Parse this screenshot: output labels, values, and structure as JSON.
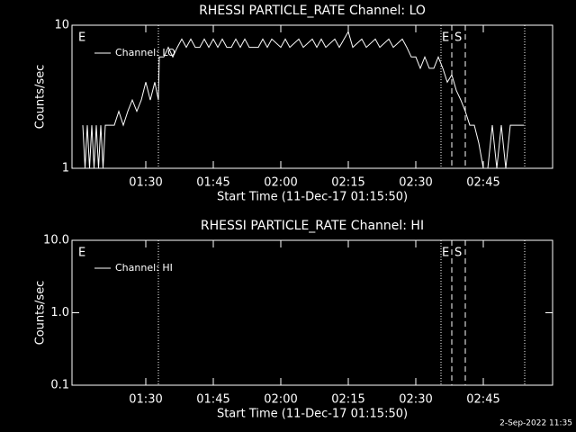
{
  "chart_data": [
    {
      "type": "line",
      "title": "RHESSI PARTICLE_RATE Channel: LO",
      "x_label": "Start Time (11-Dec-17 01:15:50)",
      "y_label": "Counts/sec",
      "xlim": [
        73.6,
        180.4
      ],
      "xticks": [
        {
          "value": 90,
          "label": "01:30"
        },
        {
          "value": 105,
          "label": "01:45"
        },
        {
          "value": 120,
          "label": "02:00"
        },
        {
          "value": 135,
          "label": "02:15"
        },
        {
          "value": 150,
          "label": "02:30"
        },
        {
          "value": 165,
          "label": "02:45"
        }
      ],
      "ylim": [
        1,
        10
      ],
      "yticks": [
        1,
        10
      ],
      "yscale": "log",
      "markers": [
        {
          "x": 74.4,
          "label": "E",
          "style": "none"
        },
        {
          "x": 92.8,
          "style": "dotted"
        },
        {
          "x": 155.6,
          "label": "E",
          "style": "dotted"
        },
        {
          "x": 158,
          "label": "S",
          "style": "dashed"
        },
        {
          "x": 161,
          "style": "dashed"
        },
        {
          "x": 174.2,
          "style": "dotted"
        }
      ],
      "series": [
        {
          "name": "Channel: LO",
          "color": "#ffffff",
          "x": [
            76,
            76.5,
            77,
            77.5,
            78,
            78.5,
            79,
            79.5,
            80,
            80.5,
            81,
            82,
            83,
            84,
            85,
            86,
            87,
            88,
            89,
            90,
            91,
            92,
            92.8,
            93,
            94,
            95,
            96,
            97,
            98,
            99,
            100,
            101,
            102,
            103,
            104,
            105,
            106,
            107,
            108,
            109,
            110,
            111,
            112,
            113,
            115,
            116,
            117,
            118,
            120,
            121,
            122,
            124,
            125,
            127,
            128,
            129,
            130,
            132,
            133,
            135,
            136,
            138,
            139,
            141,
            142,
            144,
            145,
            147,
            148,
            149,
            150,
            151,
            152,
            153,
            154,
            155,
            156,
            157,
            158,
            159,
            160,
            161,
            162,
            163,
            164,
            165,
            166,
            167,
            168,
            169,
            170,
            171,
            172,
            173,
            174
          ],
          "values": [
            2,
            1,
            2,
            1,
            2,
            1,
            2,
            1,
            2,
            1,
            2,
            2,
            2,
            2.5,
            2,
            2.5,
            3,
            2.5,
            3,
            4,
            3,
            4,
            3,
            6,
            6,
            7,
            6,
            7,
            8,
            7,
            8,
            7,
            7,
            8,
            7,
            8,
            7,
            8,
            7,
            7,
            8,
            7,
            8,
            7,
            7,
            8,
            7,
            8,
            7,
            8,
            7,
            8,
            7,
            8,
            7,
            8,
            7,
            8,
            7,
            9,
            7,
            8,
            7,
            8,
            7,
            8,
            7,
            8,
            7,
            6,
            6,
            5,
            6,
            5,
            5,
            6,
            5,
            4,
            4.5,
            3.5,
            3,
            2.5,
            2,
            2,
            1.5,
            1,
            1,
            2,
            1,
            2,
            1,
            2,
            2,
            2,
            2
          ]
        }
      ]
    },
    {
      "type": "line",
      "title": "RHESSI PARTICLE_RATE Channel: HI",
      "x_label": "Start Time (11-Dec-17 01:15:50)",
      "y_label": "Counts/sec",
      "xlim": [
        73.6,
        180.4
      ],
      "xticks": [
        {
          "value": 90,
          "label": "01:30"
        },
        {
          "value": 105,
          "label": "01:45"
        },
        {
          "value": 120,
          "label": "02:00"
        },
        {
          "value": 135,
          "label": "02:15"
        },
        {
          "value": 150,
          "label": "02:30"
        },
        {
          "value": 165,
          "label": "02:45"
        }
      ],
      "ylim": [
        0.1,
        10
      ],
      "yticks": [
        0.1,
        {
          "value": 1,
          "label": "1.0"
        },
        {
          "value": 10,
          "label": "10.0"
        }
      ],
      "yscale": "log",
      "markers": [
        {
          "x": 74.4,
          "label": "E",
          "style": "none"
        },
        {
          "x": 92.8,
          "style": "dotted"
        },
        {
          "x": 155.6,
          "label": "E",
          "style": "dotted"
        },
        {
          "x": 158,
          "label": "S",
          "style": "dashed"
        },
        {
          "x": 161,
          "style": "dashed"
        },
        {
          "x": 174.2,
          "style": "dotted"
        }
      ],
      "series": [
        {
          "name": "Channel: HI",
          "color": "#ffffff",
          "x": [],
          "values": []
        }
      ]
    }
  ],
  "footer": "2-Sep-2022 11:35"
}
